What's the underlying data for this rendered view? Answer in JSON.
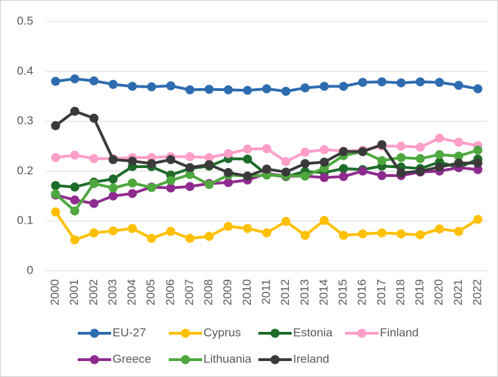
{
  "chart_data": {
    "type": "line",
    "categories": [
      "2000",
      "2001",
      "2002",
      "2003",
      "2004",
      "2005",
      "2006",
      "2007",
      "2008",
      "2009",
      "2010",
      "2011",
      "2012",
      "2013",
      "2014",
      "2015",
      "2016",
      "2017",
      "2018",
      "2019",
      "2020",
      "2021",
      "2022"
    ],
    "ylim": [
      0,
      0.5
    ],
    "yticks": [
      0,
      0.1,
      0.2,
      0.3,
      0.4,
      0.5
    ],
    "grid": true,
    "legend": "bottom",
    "series": [
      {
        "name": "EU-27",
        "color": "#2e6cb0",
        "values": [
          0.38,
          0.385,
          0.381,
          0.374,
          0.37,
          0.369,
          0.371,
          0.363,
          0.364,
          0.363,
          0.362,
          0.365,
          0.36,
          0.367,
          0.37,
          0.37,
          0.378,
          0.379,
          0.377,
          0.379,
          0.378,
          0.372,
          0.365
        ]
      },
      {
        "name": "Cyprus",
        "color": "#ffc000",
        "values": [
          0.118,
          0.062,
          0.076,
          0.08,
          0.085,
          0.065,
          0.079,
          0.065,
          0.069,
          0.089,
          0.085,
          0.076,
          0.099,
          0.071,
          0.101,
          0.071,
          0.074,
          0.076,
          0.074,
          0.072,
          0.084,
          0.079,
          0.103
        ]
      },
      {
        "name": "Estonia",
        "color": "#1e6b2a",
        "values": [
          0.171,
          0.168,
          0.178,
          0.184,
          0.209,
          0.209,
          0.192,
          0.205,
          0.21,
          0.225,
          0.224,
          0.193,
          0.189,
          0.199,
          0.197,
          0.205,
          0.203,
          0.21,
          0.208,
          0.205,
          0.218,
          0.207,
          0.224
        ]
      },
      {
        "name": "Finland",
        "color": "#ff9ec9",
        "values": [
          0.227,
          0.232,
          0.225,
          0.225,
          0.227,
          0.227,
          0.229,
          0.229,
          0.227,
          0.235,
          0.244,
          0.245,
          0.219,
          0.238,
          0.243,
          0.24,
          0.242,
          0.25,
          0.25,
          0.248,
          0.266,
          0.258,
          0.251
        ]
      },
      {
        "name": "Greece",
        "color": "#8e2b8e",
        "values": [
          0.152,
          0.142,
          0.135,
          0.15,
          0.155,
          0.168,
          0.166,
          0.169,
          0.175,
          0.177,
          0.182,
          0.195,
          0.19,
          0.19,
          0.187,
          0.189,
          0.2,
          0.191,
          0.191,
          0.198,
          0.2,
          0.207,
          0.203
        ]
      },
      {
        "name": "Lithuania",
        "color": "#4ea83e",
        "values": [
          0.154,
          0.12,
          0.175,
          0.166,
          0.176,
          0.167,
          0.181,
          0.193,
          0.173,
          0.192,
          0.19,
          0.192,
          0.191,
          0.19,
          0.206,
          0.231,
          0.239,
          0.221,
          0.227,
          0.225,
          0.233,
          0.23,
          0.242
        ]
      },
      {
        "name": "Ireland",
        "color": "#3a3a3a",
        "values": [
          0.291,
          0.32,
          0.306,
          0.223,
          0.22,
          0.215,
          0.223,
          0.207,
          0.213,
          0.197,
          0.19,
          0.204,
          0.198,
          0.215,
          0.218,
          0.239,
          0.239,
          0.253,
          0.196,
          0.2,
          0.208,
          0.216,
          0.216
        ]
      }
    ]
  }
}
